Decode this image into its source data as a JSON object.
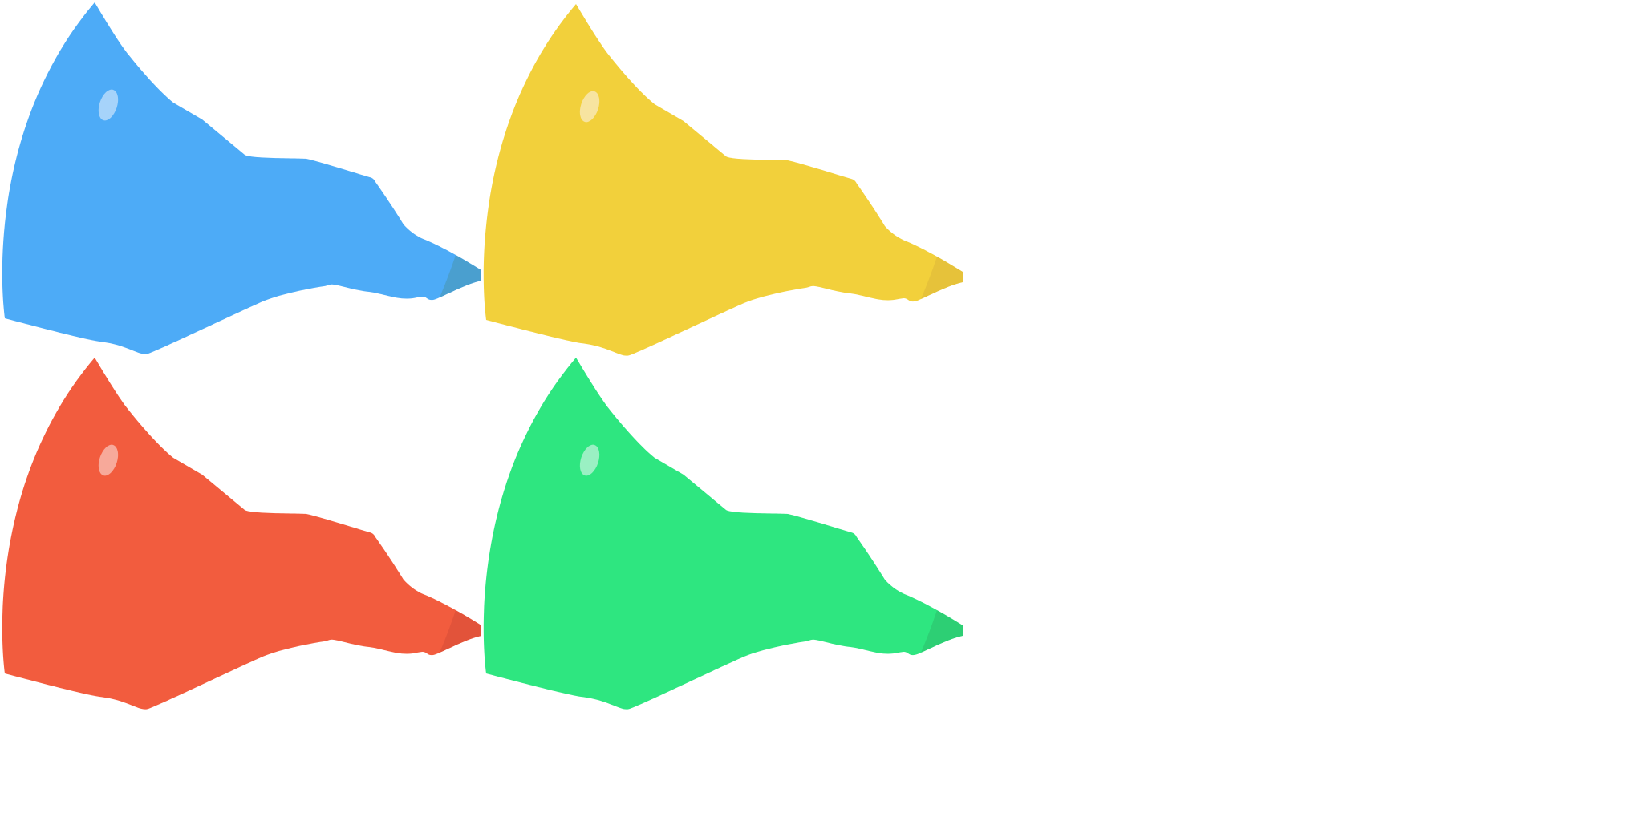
{
  "sprites": [
    {
      "name": "blue-creature-head",
      "body": "#4DABF7",
      "shade": "#4A9FCF",
      "eye": "#A6D3FA"
    },
    {
      "name": "yellow-creature-head",
      "body": "#F2D03B",
      "shade": "#E6C23A",
      "eye": "#F7E4A0"
    },
    {
      "name": "red-creature-head",
      "body": "#F25C3E",
      "shade": "#E2533A",
      "eye": "#F7A99A"
    },
    {
      "name": "green-creature-head",
      "body": "#2EE680",
      "shade": "#2DCF74",
      "eye": "#9AF0C3"
    }
  ]
}
